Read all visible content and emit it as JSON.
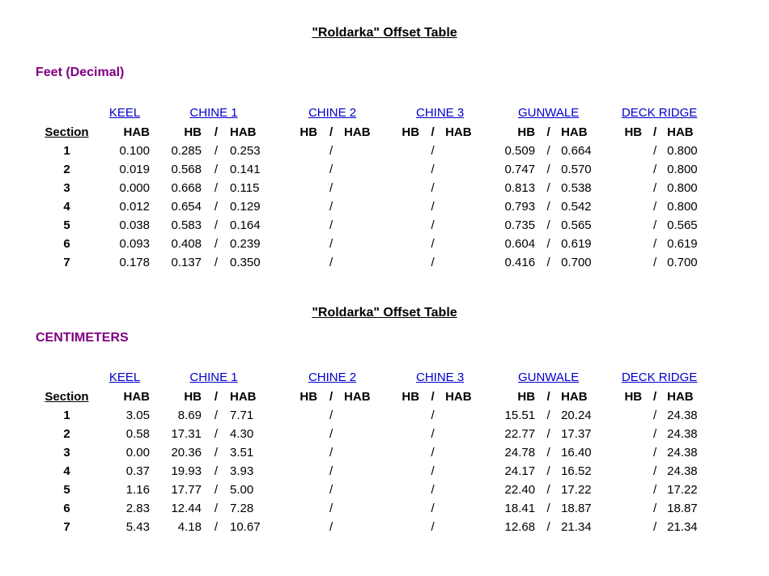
{
  "colors": {
    "header_link_blue": "#0000cc",
    "unit_label_purple": "#800080",
    "text_black": "#000000",
    "background": "#ffffff"
  },
  "headers": {
    "groups": [
      "KEEL",
      "CHINE 1",
      "CHINE 2",
      "CHINE 3",
      "GUNWALE",
      "DECK RIDGE"
    ],
    "sub": [
      "Section",
      "HAB",
      "HB",
      "/",
      "HAB",
      "HB",
      "/",
      "HAB",
      "HB",
      "/",
      "HAB",
      "HB",
      "/",
      "HAB",
      "HB",
      "/",
      "HAB"
    ]
  },
  "tables": [
    {
      "title": "\"Roldarka\" Offset Table",
      "unit_label": "Feet (Decimal)",
      "rows": [
        [
          "1",
          "0.100",
          "0.285",
          "/",
          "0.253",
          "",
          "/",
          "",
          "",
          "/",
          "",
          "0.509",
          "/",
          "0.664",
          "",
          "/",
          "0.800"
        ],
        [
          "2",
          "0.019",
          "0.568",
          "/",
          "0.141",
          "",
          "/",
          "",
          "",
          "/",
          "",
          "0.747",
          "/",
          "0.570",
          "",
          "/",
          "0.800"
        ],
        [
          "3",
          "0.000",
          "0.668",
          "/",
          "0.115",
          "",
          "/",
          "",
          "",
          "/",
          "",
          "0.813",
          "/",
          "0.538",
          "",
          "/",
          "0.800"
        ],
        [
          "4",
          "0.012",
          "0.654",
          "/",
          "0.129",
          "",
          "/",
          "",
          "",
          "/",
          "",
          "0.793",
          "/",
          "0.542",
          "",
          "/",
          "0.800"
        ],
        [
          "5",
          "0.038",
          "0.583",
          "/",
          "0.164",
          "",
          "/",
          "",
          "",
          "/",
          "",
          "0.735",
          "/",
          "0.565",
          "",
          "/",
          "0.565"
        ],
        [
          "6",
          "0.093",
          "0.408",
          "/",
          "0.239",
          "",
          "/",
          "",
          "",
          "/",
          "",
          "0.604",
          "/",
          "0.619",
          "",
          "/",
          "0.619"
        ],
        [
          "7",
          "0.178",
          "0.137",
          "/",
          "0.350",
          "",
          "/",
          "",
          "",
          "/",
          "",
          "0.416",
          "/",
          "0.700",
          "",
          "/",
          "0.700"
        ]
      ]
    },
    {
      "title": "\"Roldarka\" Offset Table",
      "unit_label": "CENTIMETERS",
      "rows": [
        [
          "1",
          "3.05",
          "8.69",
          "/",
          "7.71",
          "",
          "/",
          "",
          "",
          "/",
          "",
          "15.51",
          "/",
          "20.24",
          "",
          "/",
          "24.38"
        ],
        [
          "2",
          "0.58",
          "17.31",
          "/",
          "4.30",
          "",
          "/",
          "",
          "",
          "/",
          "",
          "22.77",
          "/",
          "17.37",
          "",
          "/",
          "24.38"
        ],
        [
          "3",
          "0.00",
          "20.36",
          "/",
          "3.51",
          "",
          "/",
          "",
          "",
          "/",
          "",
          "24.78",
          "/",
          "16.40",
          "",
          "/",
          "24.38"
        ],
        [
          "4",
          "0.37",
          "19.93",
          "/",
          "3.93",
          "",
          "/",
          "",
          "",
          "/",
          "",
          "24.17",
          "/",
          "16.52",
          "",
          "/",
          "24.38"
        ],
        [
          "5",
          "1.16",
          "17.77",
          "/",
          "5.00",
          "",
          "/",
          "",
          "",
          "/",
          "",
          "22.40",
          "/",
          "17.22",
          "",
          "/",
          "17.22"
        ],
        [
          "6",
          "2.83",
          "12.44",
          "/",
          "7.28",
          "",
          "/",
          "",
          "",
          "/",
          "",
          "18.41",
          "/",
          "18.87",
          "",
          "/",
          "18.87"
        ],
        [
          "7",
          "5.43",
          "4.18",
          "/",
          "10.67",
          "",
          "/",
          "",
          "",
          "/",
          "",
          "12.68",
          "/",
          "21.34",
          "",
          "/",
          "21.34"
        ]
      ]
    }
  ]
}
